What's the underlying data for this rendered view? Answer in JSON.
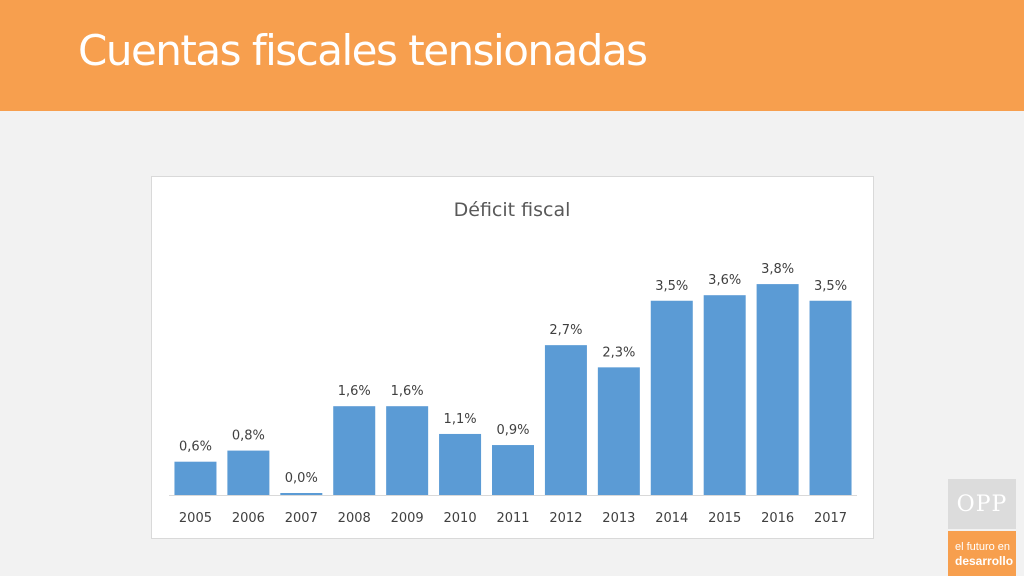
{
  "slide": {
    "title": "Cuentas fiscales tensionadas"
  },
  "logo": {
    "name": "OPP",
    "tagline_line1": "el futuro en",
    "tagline_line2": "desarrollo"
  },
  "colors": {
    "header": "#f79f4e",
    "bar": "#5b9bd5",
    "background": "#f2f2f2"
  },
  "chart_data": {
    "type": "bar",
    "title": "Déficit fiscal",
    "xlabel": "",
    "ylabel": "",
    "categories": [
      "2005",
      "2006",
      "2007",
      "2008",
      "2009",
      "2010",
      "2011",
      "2012",
      "2013",
      "2014",
      "2015",
      "2016",
      "2017"
    ],
    "values": [
      0.6,
      0.8,
      0.0,
      1.6,
      1.6,
      1.1,
      0.9,
      2.7,
      2.3,
      3.5,
      3.6,
      3.8,
      3.5
    ],
    "data_labels": [
      "0,6%",
      "0,8%",
      "0,0%",
      "1,6%",
      "1,6%",
      "1,1%",
      "0,9%",
      "2,7%",
      "2,3%",
      "3,5%",
      "3,6%",
      "3,8%",
      "3,5%"
    ],
    "ylim": [
      0,
      4.5
    ],
    "grid": false,
    "legend": "none"
  }
}
